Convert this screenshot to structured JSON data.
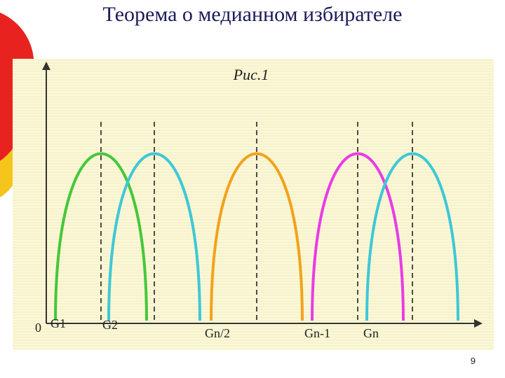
{
  "slide": {
    "title": "Теорема о медианном избирателе",
    "page_number": "9"
  },
  "figure": {
    "caption": "Рис.1",
    "origin_label": "0",
    "x_labels": [
      "G1",
      "G2",
      "Gn/2",
      "Gn-1",
      "Gn"
    ],
    "colors": {
      "panel": "#fbf8d8",
      "axis": "#333333",
      "deco_red": "#e8231f",
      "deco_yellow": "#f6c51c"
    },
    "curves": [
      {
        "name": "green",
        "color": "#44c83a"
      },
      {
        "name": "cyan",
        "color": "#3ec8d6"
      },
      {
        "name": "orange",
        "color": "#f2a21c"
      },
      {
        "name": "magenta",
        "color": "#e83ce6"
      },
      {
        "name": "cyan-2",
        "color": "#3ec8d6"
      }
    ]
  }
}
